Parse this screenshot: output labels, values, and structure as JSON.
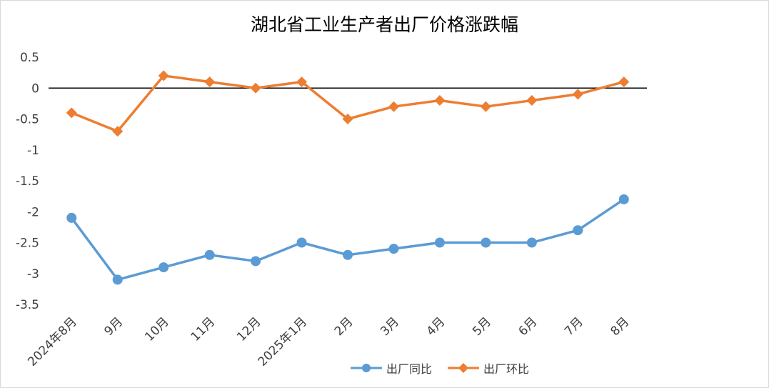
{
  "chart_data": {
    "type": "line",
    "title": "湖北省工业生产者出厂价格涨跌幅",
    "categories": [
      "2024年8月",
      "9月",
      "10月",
      "11月",
      "12月",
      "2025年1月",
      "2月",
      "3月",
      "4月",
      "5月",
      "6月",
      "7月",
      "8月"
    ],
    "series": [
      {
        "name": "出厂同比",
        "color": "#5b9bd5",
        "marker": "circle",
        "values": [
          -2.1,
          -3.1,
          -2.9,
          -2.7,
          -2.8,
          -2.5,
          -2.7,
          -2.6,
          -2.5,
          -2.5,
          -2.5,
          -2.3,
          -1.8
        ]
      },
      {
        "name": "出厂环比",
        "color": "#ed7d31",
        "marker": "diamond",
        "values": [
          -0.4,
          -0.7,
          0.2,
          0.1,
          0.0,
          0.1,
          -0.5,
          -0.3,
          -0.2,
          -0.3,
          -0.2,
          -0.1,
          0.1
        ]
      }
    ],
    "yticks": [
      "0.5",
      "0",
      "-0.5",
      "-1",
      "-1.5",
      "-2",
      "-2.5",
      "-3",
      "-3.5"
    ],
    "ylim": [
      -3.5,
      0.5
    ],
    "grid": false,
    "legend_position": "bottom",
    "xlabel": "",
    "ylabel": ""
  }
}
